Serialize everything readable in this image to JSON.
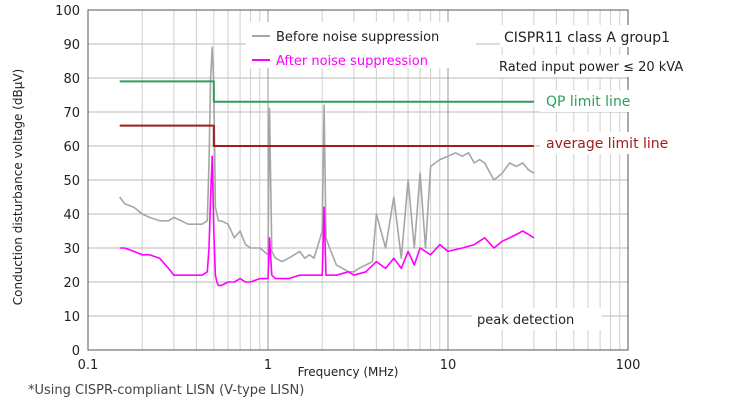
{
  "chart_data": {
    "type": "line",
    "xlabel": "Frequency (MHz)",
    "ylabel": "Conduction disturbance voltage (dBμV)",
    "x_scale": "log",
    "xlim": [
      0.1,
      100
    ],
    "ylim": [
      0,
      100
    ],
    "x_ticks": [
      {
        "value": 0.1,
        "label": "0.1"
      },
      {
        "value": 1,
        "label": "1"
      },
      {
        "value": 10,
        "label": "10"
      },
      {
        "value": 100,
        "label": "100"
      }
    ],
    "y_ticks": [
      {
        "value": 0,
        "label": "0"
      },
      {
        "value": 10,
        "label": "10"
      },
      {
        "value": 20,
        "label": "20"
      },
      {
        "value": 30,
        "label": "30"
      },
      {
        "value": 40,
        "label": "40"
      },
      {
        "value": 50,
        "label": "50"
      },
      {
        "value": 60,
        "label": "60"
      },
      {
        "value": 70,
        "label": "70"
      },
      {
        "value": 80,
        "label": "80"
      },
      {
        "value": 90,
        "label": "90"
      },
      {
        "value": 100,
        "label": "100"
      }
    ],
    "grid": true,
    "legend_position": "top-center",
    "series": [
      {
        "name": "Before noise suppression",
        "color": "#a6a6a6",
        "x": [
          0.15,
          0.16,
          0.18,
          0.2,
          0.22,
          0.25,
          0.28,
          0.3,
          0.33,
          0.36,
          0.4,
          0.43,
          0.46,
          0.47,
          0.48,
          0.49,
          0.5,
          0.51,
          0.52,
          0.53,
          0.55,
          0.6,
          0.65,
          0.7,
          0.75,
          0.8,
          0.9,
          0.95,
          1.0,
          1.02,
          1.05,
          1.1,
          1.2,
          1.3,
          1.4,
          1.5,
          1.6,
          1.7,
          1.8,
          1.9,
          2.0,
          2.05,
          2.1,
          2.2,
          2.4,
          2.6,
          2.8,
          3.0,
          3.2,
          3.5,
          3.8,
          4.0,
          4.5,
          5.0,
          5.5,
          6.0,
          6.5,
          7.0,
          7.5,
          8.0,
          9.0,
          10.0,
          11.0,
          12.0,
          13.0,
          14.0,
          15.0,
          16.0,
          18.0,
          20.0,
          22.0,
          24.0,
          26.0,
          28.0,
          30.0
        ],
        "y": [
          45,
          43,
          42,
          40,
          39,
          38,
          38,
          39,
          38,
          37,
          37,
          37,
          38,
          55,
          80,
          89,
          78,
          42,
          40,
          38,
          38,
          37,
          33,
          35,
          31,
          30,
          30,
          29,
          28,
          71,
          29,
          27,
          26,
          27,
          28,
          29,
          27,
          28,
          27,
          31,
          35,
          72,
          33,
          30,
          25,
          24,
          23,
          23,
          24,
          25,
          26,
          40,
          30,
          45,
          27,
          50,
          30,
          52,
          30,
          54,
          56,
          57,
          58,
          57,
          58,
          55,
          56,
          55,
          50,
          52,
          55,
          54,
          55,
          53,
          52
        ]
      },
      {
        "name": "After noise suppression",
        "color": "#ff00ff",
        "x": [
          0.15,
          0.16,
          0.18,
          0.2,
          0.22,
          0.25,
          0.28,
          0.3,
          0.33,
          0.36,
          0.4,
          0.43,
          0.46,
          0.47,
          0.48,
          0.49,
          0.5,
          0.51,
          0.52,
          0.53,
          0.55,
          0.6,
          0.65,
          0.7,
          0.75,
          0.8,
          0.9,
          1.0,
          1.02,
          1.05,
          1.1,
          1.3,
          1.5,
          1.8,
          2.0,
          2.05,
          2.1,
          2.4,
          2.8,
          3.0,
          3.5,
          4.0,
          4.5,
          5.0,
          5.5,
          6.0,
          6.5,
          7.0,
          8.0,
          9.0,
          10.0,
          12.0,
          14.0,
          16.0,
          18.0,
          20.0,
          22.0,
          24.0,
          26.0,
          28.0,
          30.0
        ],
        "y": [
          30,
          30,
          29,
          28,
          28,
          27,
          24,
          22,
          22,
          22,
          22,
          22,
          23,
          30,
          45,
          57,
          35,
          22,
          20,
          19,
          19,
          20,
          20,
          21,
          20,
          20,
          21,
          21,
          33,
          22,
          21,
          21,
          22,
          22,
          22,
          42,
          22,
          22,
          23,
          22,
          23,
          26,
          24,
          27,
          24,
          29,
          25,
          30,
          28,
          31,
          29,
          30,
          31,
          33,
          30,
          32,
          33,
          34,
          35,
          34,
          33
        ]
      },
      {
        "name": "QP limit line",
        "color": "#2e9e5b",
        "x": [
          0.15,
          0.5,
          0.5,
          30
        ],
        "y": [
          79,
          79,
          73,
          73
        ]
      },
      {
        "name": "average limit line",
        "color": "#a01c1c",
        "x": [
          0.15,
          0.5,
          0.5,
          30
        ],
        "y": [
          66,
          66,
          60,
          60
        ]
      }
    ],
    "annotations": [
      {
        "text": "CISPR11 class A group1"
      },
      {
        "text": "Rated input power ≤ 20 kVA"
      },
      {
        "text": "peak detection"
      }
    ],
    "footnote": "*Using CISPR-compliant LISN (V-type LISN)"
  }
}
